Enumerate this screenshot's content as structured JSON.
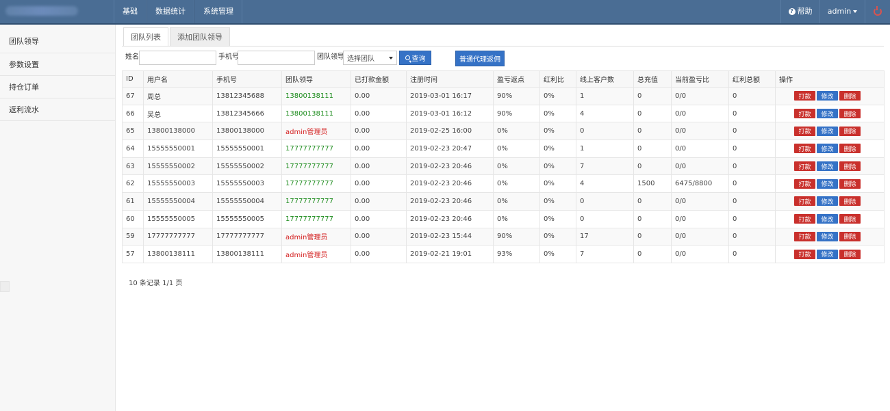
{
  "nav": {
    "items": [
      "基础",
      "数据统计",
      "系统管理"
    ],
    "help_label": "帮助",
    "user_label": "admin"
  },
  "sidebar": {
    "items": [
      "团队领导",
      "参数设置",
      "持仓订单",
      "返利流水"
    ]
  },
  "tabs": [
    "团队列表",
    "添加团队领导"
  ],
  "filters": {
    "name_label": "姓名",
    "phone_label": "手机号",
    "leader_label": "团队领导",
    "leader_select": "选择团队",
    "query_label": "查询",
    "agent_button": "普通代理返佣"
  },
  "table": {
    "headers": [
      "ID",
      "用户名",
      "手机号",
      "团队领导",
      "已打款金额",
      "注册时间",
      "盈亏返点",
      "红利比",
      "线上客户数",
      "总充值",
      "当前盈亏比",
      "红利总额",
      "操作"
    ],
    "rows": [
      {
        "id": "67",
        "username": "周总",
        "phone": "13812345688",
        "leader": "13800138111",
        "leader_color": "green",
        "paid": "0.00",
        "reg_time": "2019-03-01 16:17",
        "rebate": "90%",
        "bonus_ratio": "0%",
        "online": "1",
        "recharge": "0",
        "pl_ratio": "0/0",
        "bonus_total": "0"
      },
      {
        "id": "66",
        "username": "吴总",
        "phone": "13812345666",
        "leader": "13800138111",
        "leader_color": "green",
        "paid": "0.00",
        "reg_time": "2019-03-01 16:12",
        "rebate": "90%",
        "bonus_ratio": "0%",
        "online": "4",
        "recharge": "0",
        "pl_ratio": "0/0",
        "bonus_total": "0"
      },
      {
        "id": "65",
        "username": "13800138000",
        "phone": "13800138000",
        "leader": "admin管理员",
        "leader_color": "red",
        "paid": "0.00",
        "reg_time": "2019-02-25 16:00",
        "rebate": "0%",
        "bonus_ratio": "0%",
        "online": "0",
        "recharge": "0",
        "pl_ratio": "0/0",
        "bonus_total": "0"
      },
      {
        "id": "64",
        "username": "15555550001",
        "phone": "15555550001",
        "leader": "17777777777",
        "leader_color": "green",
        "paid": "0.00",
        "reg_time": "2019-02-23 20:47",
        "rebate": "0%",
        "bonus_ratio": "0%",
        "online": "1",
        "recharge": "0",
        "pl_ratio": "0/0",
        "bonus_total": "0"
      },
      {
        "id": "63",
        "username": "15555550002",
        "phone": "15555550002",
        "leader": "17777777777",
        "leader_color": "green",
        "paid": "0.00",
        "reg_time": "2019-02-23 20:46",
        "rebate": "0%",
        "bonus_ratio": "0%",
        "online": "7",
        "recharge": "0",
        "pl_ratio": "0/0",
        "bonus_total": "0"
      },
      {
        "id": "62",
        "username": "15555550003",
        "phone": "15555550003",
        "leader": "17777777777",
        "leader_color": "green",
        "paid": "0.00",
        "reg_time": "2019-02-23 20:46",
        "rebate": "0%",
        "bonus_ratio": "0%",
        "online": "4",
        "recharge": "1500",
        "pl_ratio": "6475/8800",
        "bonus_total": "0"
      },
      {
        "id": "61",
        "username": "15555550004",
        "phone": "15555550004",
        "leader": "17777777777",
        "leader_color": "green",
        "paid": "0.00",
        "reg_time": "2019-02-23 20:46",
        "rebate": "0%",
        "bonus_ratio": "0%",
        "online": "0",
        "recharge": "0",
        "pl_ratio": "0/0",
        "bonus_total": "0"
      },
      {
        "id": "60",
        "username": "15555550005",
        "phone": "15555550005",
        "leader": "17777777777",
        "leader_color": "green",
        "paid": "0.00",
        "reg_time": "2019-02-23 20:46",
        "rebate": "0%",
        "bonus_ratio": "0%",
        "online": "0",
        "recharge": "0",
        "pl_ratio": "0/0",
        "bonus_total": "0"
      },
      {
        "id": "59",
        "username": "17777777777",
        "phone": "17777777777",
        "leader": "admin管理员",
        "leader_color": "red",
        "paid": "0.00",
        "reg_time": "2019-02-23 15:44",
        "rebate": "90%",
        "bonus_ratio": "0%",
        "online": "17",
        "recharge": "0",
        "pl_ratio": "0/0",
        "bonus_total": "0"
      },
      {
        "id": "57",
        "username": "13800138111",
        "phone": "13800138111",
        "leader": "admin管理员",
        "leader_color": "red",
        "paid": "0.00",
        "reg_time": "2019-02-21 19:01",
        "rebate": "93%",
        "bonus_ratio": "0%",
        "online": "7",
        "recharge": "0",
        "pl_ratio": "0/0",
        "bonus_total": "0"
      }
    ],
    "actions": [
      "打款",
      "修改",
      "删除"
    ]
  },
  "summary": "10 条记录 1/1 页",
  "colors": {
    "header_bg": "#4a6d94",
    "primary": "#3572c6",
    "danger": "#c9302c",
    "green": "#1a8a1a",
    "red": "#d42020"
  }
}
